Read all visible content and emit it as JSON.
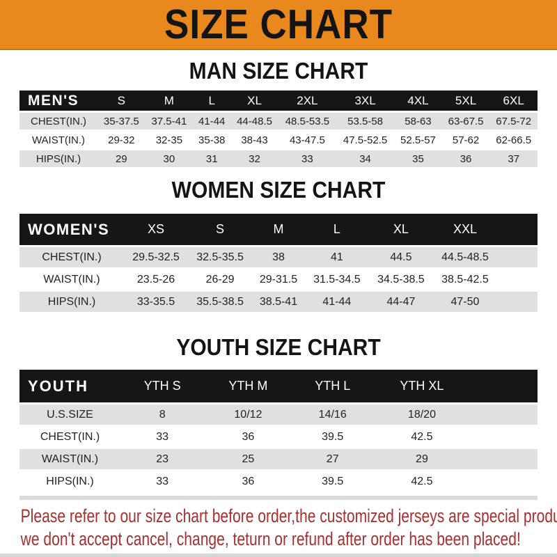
{
  "theme": {
    "accent_orange": "#E8881D",
    "bar_black": "#161616",
    "row_gray": "#E0E0E0",
    "footer_red": "#A43030",
    "bottom_strip_gray": "#D7D7D7"
  },
  "banner": {
    "title": "SIZE CHART"
  },
  "sections": {
    "men": {
      "heading": "MAN SIZE CHART",
      "table": {
        "label": "MEN'S",
        "columns": [
          "S",
          "M",
          "L",
          "XL",
          "2XL",
          "3XL",
          "4XL",
          "5XL",
          "6XL"
        ],
        "rows": [
          {
            "label": "CHEST(IN.)",
            "values": [
              "35-37.5",
              "37.5-41",
              "41-44",
              "44-48.5",
              "48.5-53.5",
              "53.5-58",
              "58-63",
              "63-67.5",
              "67.5-72"
            ]
          },
          {
            "label": "WAIST(IN.)",
            "values": [
              "29-32",
              "32-35",
              "35-38",
              "38-43",
              "43-47.5",
              "47.5-52.5",
              "52.5-57",
              "57-62",
              "62-66.5"
            ]
          },
          {
            "label": "HIPS(IN.)",
            "values": [
              "29",
              "30",
              "31",
              "32",
              "33",
              "34",
              "35",
              "36",
              "37"
            ]
          }
        ]
      }
    },
    "women": {
      "heading": "WOMEN SIZE CHART",
      "table": {
        "label": "WOMEN'S",
        "columns": [
          "XS",
          "S",
          "M",
          "L",
          "XL",
          "XXL"
        ],
        "rows": [
          {
            "label": "CHEST(IN.)",
            "values": [
              "29.5-32.5",
              "32.5-35.5",
              "38",
              "41",
              "44.5",
              "44.5-48.5"
            ]
          },
          {
            "label": "WAIST(IN.)",
            "values": [
              "23.5-26",
              "26-29",
              "29-31.5",
              "31.5-34.5",
              "34.5-38.5",
              "38.5-42.5"
            ]
          },
          {
            "label": "HIPS(IN.)",
            "values": [
              "33-35.5",
              "35.5-38.5",
              "38.5-41",
              "41-44",
              "44-47",
              "47-50"
            ]
          }
        ]
      }
    },
    "youth": {
      "heading": "YOUTH SIZE CHART",
      "table": {
        "label": "YOUTH",
        "columns": [
          "YTH S",
          "YTH M",
          "YTH L",
          "YTH XL"
        ],
        "rows": [
          {
            "label": "U.S.SIZE",
            "values": [
              "8",
              "10/12",
              "14/16",
              "18/20"
            ]
          },
          {
            "label": "CHEST(IN.)",
            "values": [
              "33",
              "36",
              "39.5",
              "42.5"
            ]
          },
          {
            "label": "WAIST(IN.)",
            "values": [
              "23",
              "25",
              "27",
              "29"
            ]
          },
          {
            "label": "HIPS(IN.)",
            "values": [
              "33",
              "36",
              "39.5",
              "42.5"
            ]
          }
        ]
      }
    }
  },
  "footer": {
    "line1": "Please refer to our size chart before order,the customized jerseys are special products,",
    "line2": "we don't accept cancel, change, teturn or refund after order has been placed!"
  }
}
